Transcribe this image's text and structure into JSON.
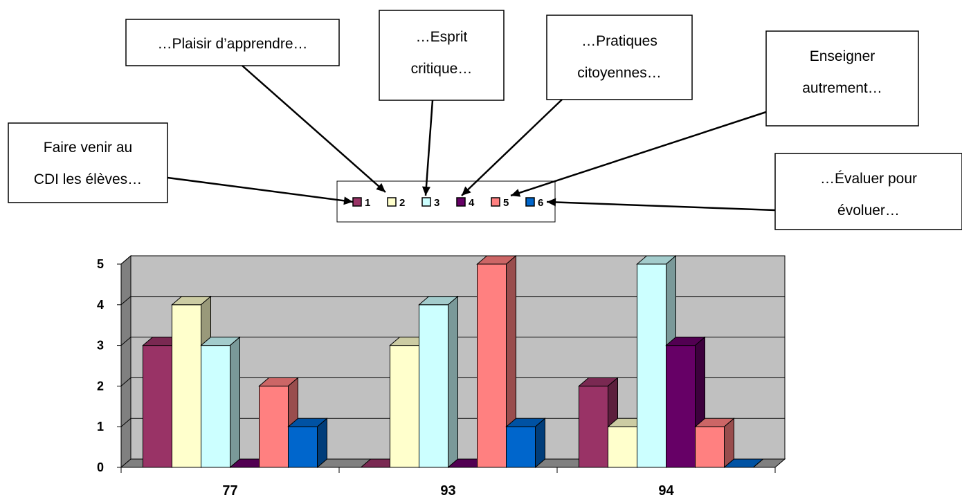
{
  "chart_data": {
    "type": "bar",
    "categories": [
      "77",
      "93",
      "94"
    ],
    "series": [
      {
        "name": "1",
        "color": "#993366",
        "values": [
          3,
          0,
          2
        ]
      },
      {
        "name": "2",
        "color": "#FFFFCC",
        "values": [
          4,
          3,
          1
        ]
      },
      {
        "name": "3",
        "color": "#CCFFFF",
        "values": [
          3,
          4,
          5
        ]
      },
      {
        "name": "4",
        "color": "#660066",
        "values": [
          0,
          0,
          3
        ]
      },
      {
        "name": "5",
        "color": "#FF8080",
        "values": [
          2,
          5,
          1
        ]
      },
      {
        "name": "6",
        "color": "#0066CC",
        "values": [
          1,
          1,
          0
        ]
      }
    ],
    "ylim": [
      0,
      5
    ],
    "yticks": [
      "0",
      "1",
      "2",
      "3",
      "4",
      "5"
    ],
    "grid": true,
    "style": "3d-column",
    "legend_position": "top-center",
    "background_color": "#C0C0C0"
  },
  "annotations": [
    {
      "text": "…Plaisir d’apprendre…",
      "target": "2",
      "lines": [
        "…Plaisir d’apprendre…"
      ]
    },
    {
      "text": "…Esprit critique…",
      "target": "3",
      "lines": [
        "…Esprit",
        "critique…"
      ]
    },
    {
      "text": "…Pratiques citoyennes…",
      "target": "4",
      "lines": [
        "…Pratiques",
        "citoyennes…"
      ]
    },
    {
      "text": "Enseigner autrement…",
      "target": "5",
      "lines": [
        "Enseigner",
        "autrement…"
      ]
    },
    {
      "text": "Faire venir au CDI les élèves…",
      "target": "1",
      "lines": [
        "Faire venir au",
        "CDI les élèves…"
      ]
    },
    {
      "text": "…Évaluer pour évoluer…",
      "target": "6",
      "lines": [
        "…Évaluer pour",
        "évoluer…"
      ]
    }
  ]
}
